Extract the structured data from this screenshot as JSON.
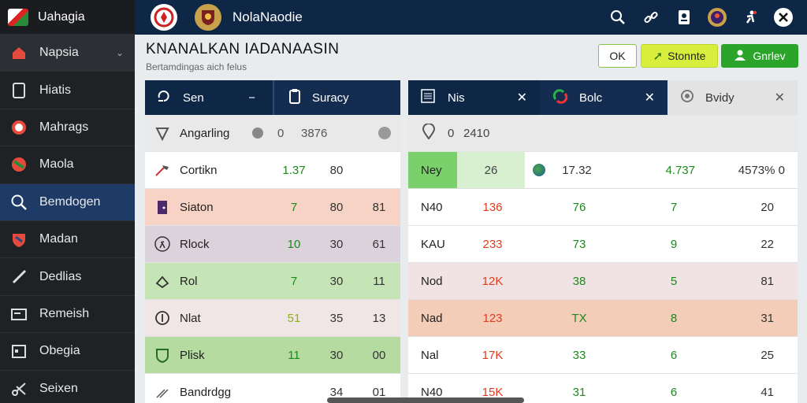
{
  "sidebar": {
    "app_name": "Uahagia",
    "items": [
      {
        "label": "Napsia",
        "icon": "home-icon",
        "has_chevron": true
      },
      {
        "label": "Hiatis",
        "icon": "document-icon"
      },
      {
        "label": "Mahrags",
        "icon": "clock-icon"
      },
      {
        "label": "Maola",
        "icon": "flag-icon"
      },
      {
        "label": "Bemdogen",
        "icon": "search-icon",
        "active": true
      },
      {
        "label": "Madan",
        "icon": "shield-icon"
      },
      {
        "label": "Dedlias",
        "icon": "pen-icon"
      },
      {
        "label": "Remeish",
        "icon": "card-icon"
      },
      {
        "label": "Obegia",
        "icon": "calendar-icon"
      },
      {
        "label": "Seixen",
        "icon": "scissors-icon"
      }
    ]
  },
  "topbar": {
    "title": "NolaNaodie",
    "icons": [
      "search-icon",
      "link-icon",
      "id-card-icon",
      "avatar-icon",
      "accessibility-icon",
      "profile-icon"
    ]
  },
  "header": {
    "title": "KNANALKAN IADANAASIN",
    "subtitle": "Bertamdingas aich felus",
    "ok_label": "OK",
    "sync_label": "Stonnte",
    "green_label": "Gnrlev"
  },
  "left_panel": {
    "tab1_label": "Sen",
    "tab2_label": "Suracy",
    "summary": {
      "label": "Angarling",
      "v1": "0",
      "v2": "3876"
    },
    "rows": [
      {
        "name": "Cortikn",
        "v1": "1.37",
        "v2": "80",
        "v3": "",
        "bg": "#ffffff",
        "v1color": "#1a8a1a",
        "icon": "hammer-icon"
      },
      {
        "name": "Siaton",
        "v1": "7",
        "v2": "80",
        "v3": "81",
        "bg": "#f6d3c4",
        "v1color": "#1a8a1a",
        "icon": "door-icon"
      },
      {
        "name": "Rlock",
        "v1": "10",
        "v2": "30",
        "v3": "61",
        "bg": "#dcd2dc",
        "v1color": "#1a8a1a",
        "icon": "run-icon"
      },
      {
        "name": "Rol",
        "v1": "7",
        "v2": "30",
        "v3": "11",
        "bg": "#c5e5b6",
        "v1color": "#1a8a1a",
        "icon": "hands-icon"
      },
      {
        "name": "Nlat",
        "v1": "51",
        "v2": "35",
        "v3": "13",
        "bg": "#f1e6e6",
        "v1color": "#8db21a",
        "icon": "bulb-icon"
      },
      {
        "name": "Plisk",
        "v1": "11",
        "v2": "30",
        "v3": "00",
        "bg": "#b6dba0",
        "v1color": "#1a8a1a",
        "icon": "badge-icon"
      },
      {
        "name": "Bandrdgg",
        "v1": "",
        "v2": "34",
        "v3": "01",
        "bg": "#ffffff",
        "v1color": "#1a8a1a",
        "icon": "tools-icon"
      }
    ]
  },
  "right_panel": {
    "tabs": [
      {
        "label": "Nis",
        "icon": "list-icon"
      },
      {
        "label": "Bolc",
        "icon": "swirl-icon"
      },
      {
        "label": "Bvidy",
        "icon": "gear-icon"
      }
    ],
    "summary": {
      "v1": "0",
      "v2": "2410"
    },
    "first_row": {
      "label": "Ney",
      "a": "26",
      "b": "17.32",
      "c": "4.737",
      "d": "4573% 0"
    },
    "rows": [
      {
        "k": "N40",
        "a": "136",
        "b": "76",
        "c": "7",
        "d": "20",
        "bg": "#ffffff"
      },
      {
        "k": "KAU",
        "a": "233",
        "b": "73",
        "c": "9",
        "d": "22",
        "bg": "#ffffff"
      },
      {
        "k": "Nod",
        "a": "12K",
        "b": "38",
        "c": "5",
        "d": "81",
        "bg": "#f1e3e3"
      },
      {
        "k": "Nad",
        "a": "123",
        "b": "TX",
        "c": "8",
        "d": "31",
        "bg": "#f3cdb8"
      },
      {
        "k": "Nal",
        "a": "17K",
        "b": "33",
        "c": "6",
        "d": "25",
        "bg": "#ffffff"
      },
      {
        "k": "N40",
        "a": "15K",
        "b": "31",
        "c": "6",
        "d": "41",
        "bg": "#ffffff"
      }
    ]
  },
  "colors": {
    "navy": "#0f2747",
    "accent_green": "#2aa52a",
    "value_red": "#e03b1f",
    "value_green": "#1a8a1a"
  }
}
